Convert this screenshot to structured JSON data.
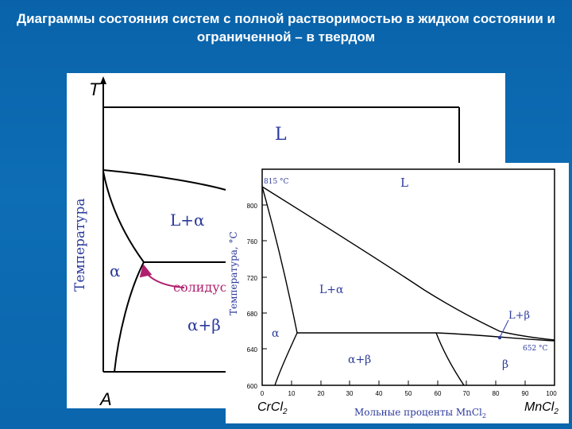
{
  "slide": {
    "title": "Диаграммы состояния систем с полной растворимостью в жидком состоянии и ограниченной – в твердом"
  },
  "schematic": {
    "y_axis_label": "T",
    "y_axis_title": "Температура",
    "x_left_label": "A",
    "regions": {
      "liquid": "L",
      "liquid_alpha": "L+α",
      "alpha": "α",
      "alpha_beta": "α+β"
    },
    "solidus_label": "солидус"
  },
  "crcl2_mncl2": {
    "y_axis_title": "Температура, °C",
    "x_axis_title": "Мольные проценты MnCl",
    "x_axis_title_sub": "2",
    "x_left_component": "CrCl",
    "x_left_component_sub": "2",
    "x_right_component": "MnCl",
    "x_right_component_sub": "2",
    "y_ticks": [
      "600",
      "640",
      "680",
      "720",
      "760",
      "800"
    ],
    "x_ticks": [
      "0",
      "10",
      "20",
      "30",
      "40",
      "50",
      "60",
      "70",
      "80",
      "90",
      "100"
    ],
    "point_labels": {
      "crcl2_melting": "815 °C",
      "mncl2_melting": "652 °C"
    },
    "regions": {
      "liquid": "L",
      "liquid_alpha": "L+α",
      "liquid_beta": "L+β",
      "alpha": "α",
      "alpha_beta": "α+β",
      "beta": "β"
    }
  },
  "colors": {
    "background": "#0b66ad",
    "title_text": "#ffffff",
    "label_blue": "#2b3a9c",
    "solidus_magenta": "#b0206e"
  }
}
